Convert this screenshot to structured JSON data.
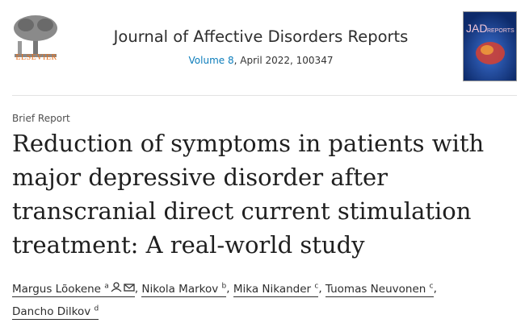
{
  "header": {
    "publisher": "ELSEVIER",
    "journal": "Journal of Affective Disorders Reports",
    "volume": "Volume 8",
    "issue_info": ", April 2022, 100347",
    "cover": {
      "title": "JAD",
      "subtitle": "REPORTS"
    }
  },
  "article": {
    "type": "Brief Report",
    "title_lines": [
      "Reduction of symptoms in patients with",
      "major depressive disorder after",
      "transcranial direct current stimulation",
      "treatment: A real-world study"
    ],
    "separator": ",",
    "authors": [
      {
        "name": "Margus Lõokene",
        "affiliation": "a"
      },
      {
        "name": "Nikola Markov",
        "affiliation": "b"
      },
      {
        "name": "Mika Nikander",
        "affiliation": "c"
      },
      {
        "name": "Tuomas Neuvonen",
        "affiliation": "c"
      },
      {
        "name": "Dancho Dilkov",
        "affiliation": "d"
      }
    ]
  }
}
